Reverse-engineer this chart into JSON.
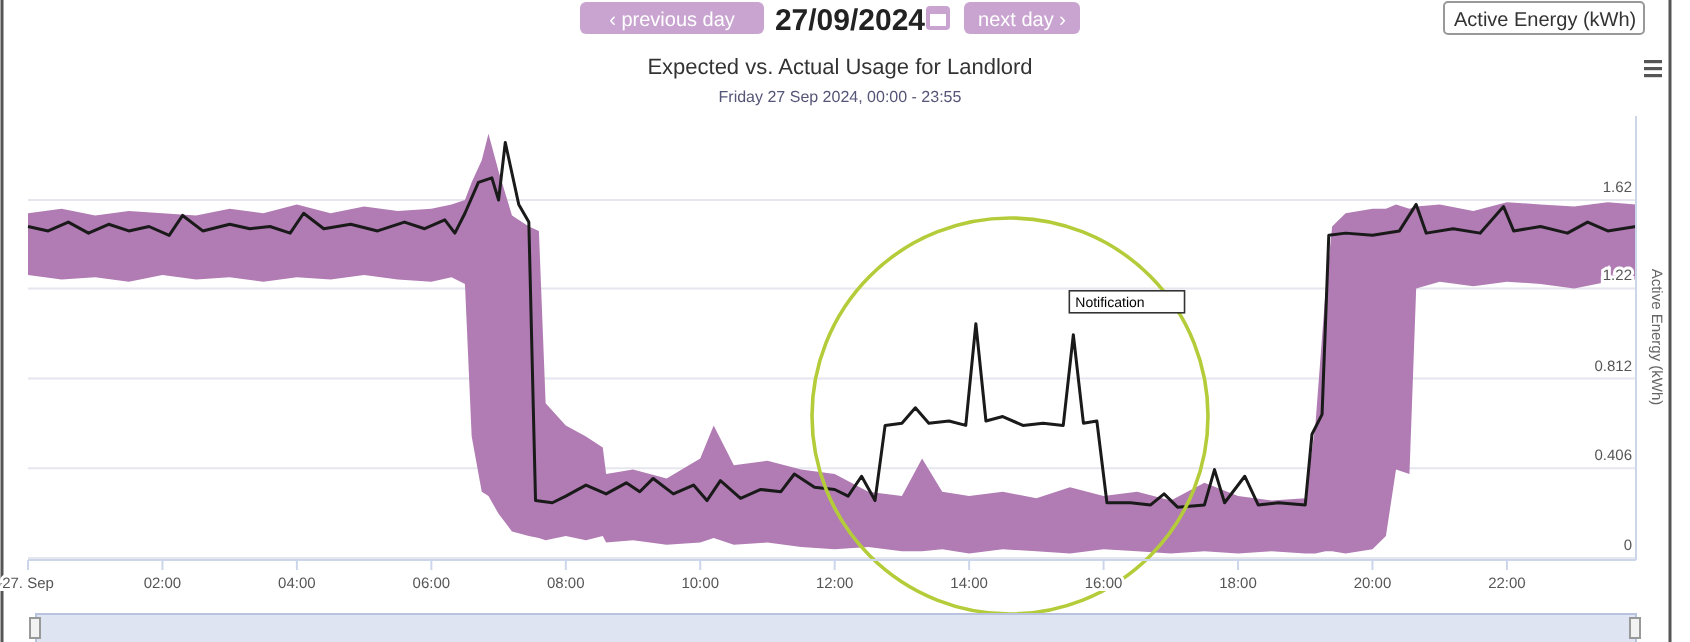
{
  "chart_data": {
    "type": "line",
    "title": "Expected vs. Actual Usage for Landlord",
    "subtitle": "Friday 27 Sep 2024, 00:00 - 23:55",
    "ylabel": "Active Energy (kWh)",
    "annotations": [
      "‹ previous day",
      "27/09/2024",
      "next day ›",
      "Active Energy (kWh)",
      {
        "text": "Notification",
        "x": 15.55,
        "y": 1.01
      }
    ],
    "xlim": [
      0,
      23.92
    ],
    "xticks": [
      {
        "value": 0,
        "label": "27. Sep"
      },
      {
        "value": 2,
        "label": "02:00"
      },
      {
        "value": 4,
        "label": "04:00"
      },
      {
        "value": 6,
        "label": "06:00"
      },
      {
        "value": 8,
        "label": "08:00"
      },
      {
        "value": 10,
        "label": "10:00"
      },
      {
        "value": 12,
        "label": "12:00"
      },
      {
        "value": 14,
        "label": "14:00"
      },
      {
        "value": 16,
        "label": "16:00"
      },
      {
        "value": 18,
        "label": "18:00"
      },
      {
        "value": 20,
        "label": "20:00"
      },
      {
        "value": 22,
        "label": "22:00"
      }
    ],
    "ylim": [
      0,
      2.0
    ],
    "yticks": [
      0,
      0.406,
      0.812,
      1.22,
      1.62
    ],
    "grid": "y",
    "series": [
      {
        "color": "#b07cb3",
        "x": [
          0,
          0.5,
          1,
          1.5,
          2,
          2.5,
          3,
          3.5,
          4,
          4.5,
          5,
          5.5,
          6,
          6.3,
          6.5,
          6.6,
          6.75,
          6.85,
          7.0,
          7.2,
          7.45,
          7.6,
          7.7,
          8.0,
          8.3,
          8.55,
          8.6,
          9.0,
          9.5,
          10.0,
          10.2,
          10.5,
          11.0,
          11.5,
          12.0,
          12.5,
          13.0,
          13.3,
          13.6,
          14.0,
          14.5,
          15.0,
          15.5,
          16.0,
          16.5,
          17.0,
          17.5,
          18.0,
          18.5,
          19.0,
          19.15,
          19.3,
          19.4,
          19.6,
          20.0,
          20.2,
          20.35,
          20.55,
          20.65,
          21.0,
          21.5,
          22.0,
          22.5,
          23.0,
          23.5,
          23.92
        ],
        "values": [
          null,
          null,
          null,
          null,
          null,
          null,
          null,
          null,
          null,
          null,
          null,
          null,
          null,
          null,
          null,
          null,
          null,
          null,
          null,
          null,
          null,
          null,
          null,
          null,
          null,
          null,
          null,
          null,
          null,
          null,
          null,
          null,
          null,
          null,
          null,
          null,
          null,
          null,
          null,
          null,
          null,
          null,
          null,
          null,
          null,
          null,
          null,
          null,
          null,
          null,
          null,
          null,
          null,
          null,
          null,
          null,
          null,
          null,
          null,
          null,
          null,
          null,
          null,
          null,
          null,
          null
        ],
        "upper": [
          1.56,
          1.58,
          1.55,
          1.57,
          1.56,
          1.55,
          1.58,
          1.56,
          1.6,
          1.56,
          1.59,
          1.57,
          1.58,
          1.6,
          1.62,
          1.7,
          1.8,
          1.92,
          1.75,
          1.55,
          1.5,
          1.48,
          0.7,
          0.6,
          0.55,
          0.5,
          0.38,
          0.4,
          0.36,
          0.45,
          0.6,
          0.42,
          0.44,
          0.4,
          0.38,
          0.3,
          0.28,
          0.45,
          0.3,
          0.28,
          0.3,
          0.27,
          0.32,
          0.28,
          0.3,
          0.26,
          0.34,
          0.28,
          0.26,
          0.27,
          0.6,
          1.2,
          1.5,
          1.56,
          1.58,
          1.58,
          1.6,
          1.58,
          1.59,
          1.6,
          1.57,
          1.61,
          1.6,
          1.59,
          1.61,
          1.6
        ],
        "lower": [
          1.28,
          1.26,
          1.27,
          1.25,
          1.28,
          1.26,
          1.27,
          1.25,
          1.27,
          1.26,
          1.28,
          1.26,
          1.25,
          1.27,
          1.24,
          0.55,
          0.3,
          0.28,
          0.2,
          0.12,
          0.1,
          0.09,
          0.08,
          0.1,
          0.08,
          0.1,
          0.07,
          0.08,
          0.06,
          0.07,
          0.09,
          0.06,
          0.07,
          0.05,
          0.04,
          0.05,
          0.03,
          0.03,
          0.04,
          0.02,
          0.04,
          0.03,
          0.02,
          0.04,
          0.03,
          0.02,
          0.03,
          0.02,
          0.03,
          0.02,
          0.02,
          0.03,
          0.03,
          0.02,
          0.04,
          0.1,
          0.4,
          0.38,
          1.22,
          1.25,
          1.23,
          1.25,
          1.24,
          1.22,
          1.25,
          1.26
        ]
      },
      {
        "color": "#1a1a1a",
        "x": [
          0,
          0.3,
          0.6,
          0.9,
          1.2,
          1.5,
          1.8,
          2.1,
          2.3,
          2.6,
          3.0,
          3.3,
          3.6,
          3.9,
          4.1,
          4.4,
          4.8,
          5.2,
          5.6,
          5.9,
          6.2,
          6.35,
          6.5,
          6.7,
          6.9,
          7.0,
          7.1,
          7.3,
          7.45,
          7.55,
          7.8,
          8.0,
          8.3,
          8.6,
          8.9,
          9.1,
          9.3,
          9.6,
          9.9,
          10.1,
          10.3,
          10.6,
          10.9,
          11.2,
          11.4,
          11.7,
          12.0,
          12.2,
          12.4,
          12.6,
          12.75,
          13.0,
          13.2,
          13.4,
          13.7,
          13.95,
          14.1,
          14.25,
          14.5,
          14.8,
          15.1,
          15.4,
          15.55,
          15.7,
          15.9,
          16.05,
          16.4,
          16.7,
          16.9,
          17.1,
          17.5,
          17.65,
          17.8,
          18.1,
          18.3,
          18.6,
          19.0,
          19.1,
          19.25,
          19.35,
          19.6,
          20.0,
          20.4,
          20.65,
          20.8,
          21.2,
          21.6,
          21.95,
          22.1,
          22.5,
          22.9,
          23.2,
          23.5,
          23.92
        ],
        "values": [
          1.5,
          1.48,
          1.52,
          1.47,
          1.51,
          1.48,
          1.5,
          1.46,
          1.55,
          1.48,
          1.51,
          1.49,
          1.5,
          1.47,
          1.56,
          1.49,
          1.51,
          1.48,
          1.52,
          1.49,
          1.53,
          1.47,
          1.56,
          1.7,
          1.72,
          1.62,
          1.88,
          1.6,
          1.52,
          0.26,
          0.25,
          0.28,
          0.33,
          0.29,
          0.34,
          0.3,
          0.36,
          0.29,
          0.33,
          0.26,
          0.35,
          0.27,
          0.31,
          0.3,
          0.38,
          0.32,
          0.31,
          0.28,
          0.37,
          0.26,
          0.6,
          0.61,
          0.68,
          0.61,
          0.62,
          0.6,
          1.06,
          0.62,
          0.64,
          0.6,
          0.61,
          0.6,
          1.01,
          0.61,
          0.62,
          0.25,
          0.25,
          0.24,
          0.29,
          0.23,
          0.24,
          0.4,
          0.25,
          0.37,
          0.24,
          0.25,
          0.24,
          0.56,
          0.65,
          1.46,
          1.47,
          1.46,
          1.48,
          1.6,
          1.47,
          1.49,
          1.47,
          1.59,
          1.48,
          1.5,
          1.47,
          1.52,
          1.48,
          1.5
        ]
      }
    ]
  }
}
